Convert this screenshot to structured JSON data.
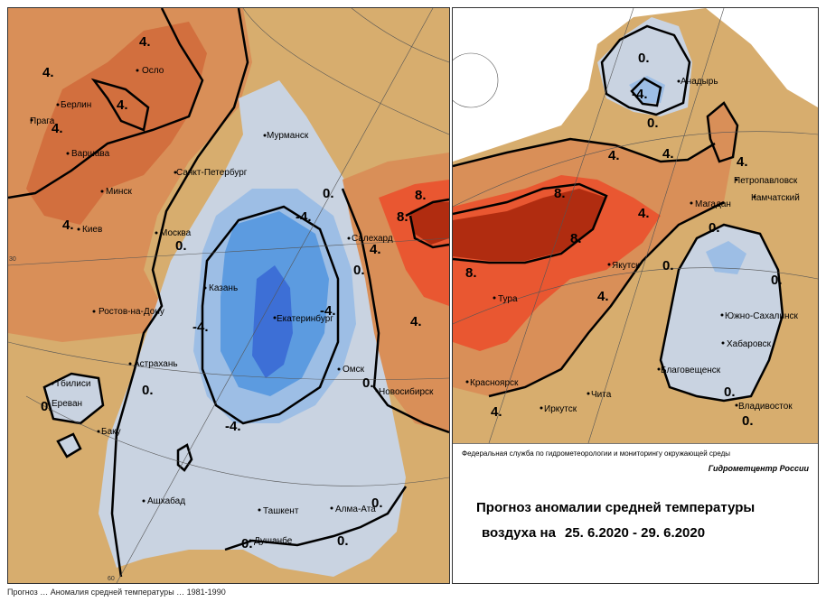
{
  "left_map": {
    "cities": [
      {
        "name": "Осло"
      },
      {
        "name": "Берлин"
      },
      {
        "name": "Прага"
      },
      {
        "name": "Варшава"
      },
      {
        "name": "Минск"
      },
      {
        "name": "Киев"
      },
      {
        "name": "Санкт-Петербург"
      },
      {
        "name": "Мурманск"
      },
      {
        "name": "Москва"
      },
      {
        "name": "Казань"
      },
      {
        "name": "Екатеринбург"
      },
      {
        "name": "Салехард"
      },
      {
        "name": "Ростов-на-Дону"
      },
      {
        "name": "Астрахань"
      },
      {
        "name": "Тбилиси"
      },
      {
        "name": "Ереван"
      },
      {
        "name": "Баку"
      },
      {
        "name": "Омск"
      },
      {
        "name": "Новосибирск"
      },
      {
        "name": "Ашхабад"
      },
      {
        "name": "Ташкент"
      },
      {
        "name": "Алма-Ата"
      },
      {
        "name": "Душанбе"
      }
    ],
    "isotherm_labels": [
      "4.",
      "4.",
      "4.",
      "4.",
      "4.",
      "0.",
      "-4.",
      "-4.",
      "-4.",
      "-4.",
      "0.",
      "0.",
      "8.",
      "8.",
      "4.",
      "4.",
      "0.",
      "0.",
      "0.",
      "0.",
      "0.",
      "0."
    ],
    "axis_ticks": [
      "30",
      "60"
    ]
  },
  "right_map": {
    "cities": [
      {
        "name": "Анадырь"
      },
      {
        "name": "Петропавловск"
      },
      {
        "name": "Камчатский"
      },
      {
        "name": "Магадан"
      },
      {
        "name": "Якутск"
      },
      {
        "name": "Тура"
      },
      {
        "name": "Южно-Сахалинск"
      },
      {
        "name": "Хабаровск"
      },
      {
        "name": "Благовещенск"
      },
      {
        "name": "Красноярск"
      },
      {
        "name": "Иркутск"
      },
      {
        "name": "Чита"
      },
      {
        "name": "Владивосток"
      }
    ],
    "isotherm_labels": [
      "0.",
      "-4.",
      "0.",
      "4.",
      "4.",
      "4.",
      "8.",
      "8.",
      "8.",
      "4.",
      "0.",
      "0.",
      "0.",
      "4.",
      "4.",
      "0.",
      "0."
    ]
  },
  "legend": {
    "agency": "Федеральная служба по гидрометеорологии и мониторингу окружающей среды",
    "center": "Гидрометцентр России",
    "title_line1": "Прогноз аномалии средней температуры",
    "title_line2": "воздуха на",
    "dates": "25. 6.2020 - 29. 6.2020"
  },
  "footnote": "Прогноз … Аномалия средней температуры … 1981-1990",
  "colors": {
    "anomaly_neg_light": "#c9d3e1",
    "anomaly_neg_mid": "#9dbee5",
    "anomaly_neg_strong": "#5c9be0",
    "anomaly_neg_core": "#3d6fd6",
    "anomaly_zero_warm": "#d7ad6e",
    "anomaly_pos_mid": "#d98f58",
    "anomaly_pos_strong": "#d96a3a",
    "anomaly_pos_core": "#eb4e2a",
    "anomaly_pos_extreme": "#b02c10"
  }
}
